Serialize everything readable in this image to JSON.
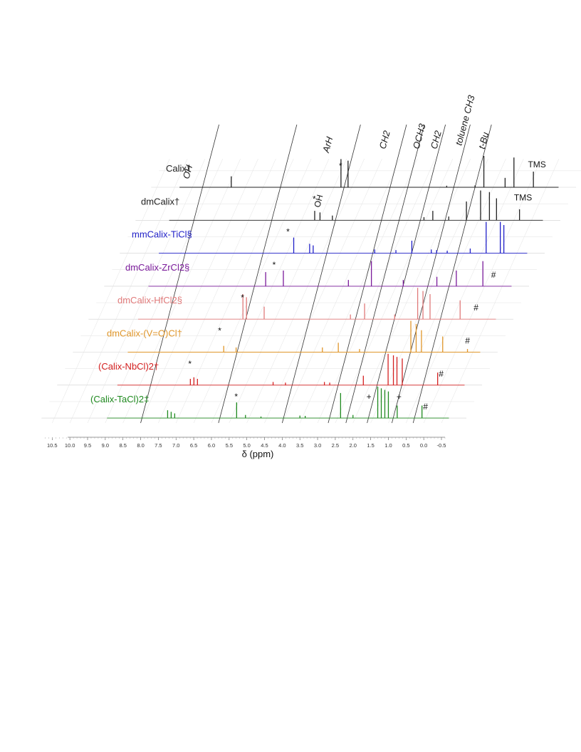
{
  "chart_data": {
    "type": "line",
    "title": "",
    "xlabel": "δ (ppm)",
    "ylabel": "",
    "xlim": [
      10.7,
      -0.6
    ],
    "x_ticks": [
      "10.5",
      "10.0",
      "9.5",
      "9.0",
      "8.5",
      "8.0",
      "7.5",
      "7.0",
      "6.5",
      "6.0",
      "5.5",
      "5.0",
      "4.5",
      "4.0",
      "3.5",
      "3.0",
      "2.5",
      "2.0",
      "1.5",
      "1.0",
      "0.5",
      "0.0",
      "-0.5"
    ],
    "region_labels": [
      {
        "text": "OH"
      },
      {
        "text": "ArH"
      },
      {
        "text": "CH2"
      },
      {
        "text": "OCH3"
      },
      {
        "text": "CH2"
      },
      {
        "text": "toluene CH3"
      },
      {
        "text": "t-Bu"
      }
    ],
    "series": [
      {
        "name": "Calix†",
        "color": "#222222",
        "peaks": [
          [
            8.55,
            0.35
          ],
          [
            5.45,
            0.9
          ],
          [
            5.25,
            0.85
          ],
          [
            2.45,
            0.05
          ],
          [
            1.65,
            0.06
          ],
          [
            1.4,
            1.0
          ],
          [
            0.8,
            0.3
          ],
          [
            0.55,
            0.95
          ],
          [
            0.0,
            0.5
          ]
        ],
        "marks": [
          {
            "symbol": "*",
            "x": 5.45
          },
          {
            "symbol": "TMS",
            "x": -0.1
          }
        ]
      },
      {
        "name": "dmCalix†",
        "color": "#222222",
        "peaks": [
          [
            5.75,
            0.3
          ],
          [
            5.6,
            0.25
          ],
          [
            5.25,
            0.15
          ],
          [
            2.65,
            0.1
          ],
          [
            2.4,
            0.3
          ],
          [
            1.95,
            0.12
          ],
          [
            1.45,
            0.6
          ],
          [
            1.05,
            0.95
          ],
          [
            0.8,
            0.9
          ],
          [
            0.6,
            0.7
          ],
          [
            -0.05,
            0.35
          ]
        ],
        "marks": [
          {
            "symbol": "*",
            "x": 5.75
          },
          {
            "symbol": "OH",
            "x": 5.55
          },
          {
            "symbol": "TMS",
            "x": -0.15
          }
        ]
      },
      {
        "name": "mmCalix-TiCl§",
        "color": "#1f1fc8",
        "peaks": [
          [
            5.9,
            0.5
          ],
          [
            5.45,
            0.3
          ],
          [
            5.35,
            0.25
          ],
          [
            3.6,
            0.12
          ],
          [
            3.0,
            0.1
          ],
          [
            2.55,
            0.4
          ],
          [
            2.0,
            0.12
          ],
          [
            1.85,
            0.1
          ],
          [
            1.55,
            0.08
          ],
          [
            0.9,
            0.15
          ],
          [
            0.45,
            1.0
          ],
          [
            0.05,
            1.0
          ],
          [
            -0.05,
            0.9
          ]
        ],
        "marks": [
          {
            "symbol": "*",
            "x": 6.05
          }
        ]
      },
      {
        "name": "dmCalix-ZrCl2§",
        "color": "#7a1a9a",
        "peaks": [
          [
            6.25,
            0.45
          ],
          [
            5.75,
            0.5
          ],
          [
            3.9,
            0.2
          ],
          [
            3.25,
            0.8
          ],
          [
            2.35,
            0.2
          ],
          [
            1.4,
            0.3
          ],
          [
            0.85,
            0.5
          ],
          [
            0.1,
            0.8
          ]
        ],
        "marks": [
          {
            "symbol": "*",
            "x": 6.0
          },
          {
            "symbol": "#",
            "x": -0.2
          }
        ]
      },
      {
        "name": "dmCalix-HfCl2§",
        "color": "#e07a7a",
        "peaks": [
          [
            6.45,
            0.8
          ],
          [
            6.35,
            0.7
          ],
          [
            5.85,
            0.4
          ],
          [
            3.4,
            0.15
          ],
          [
            3.0,
            0.5
          ],
          [
            2.15,
            0.15
          ],
          [
            1.5,
            1.0
          ],
          [
            1.35,
            0.9
          ],
          [
            1.15,
            0.8
          ],
          [
            0.3,
            0.6
          ]
        ],
        "marks": [
          {
            "symbol": "*",
            "x": 6.45
          },
          {
            "symbol": "#",
            "x": -0.15
          }
        ]
      },
      {
        "name": "dmCalix-(V=O)Cl†",
        "color": "#e0962a",
        "peaks": [
          [
            6.55,
            0.2
          ],
          [
            6.2,
            0.15
          ],
          [
            3.75,
            0.15
          ],
          [
            3.3,
            0.3
          ],
          [
            2.7,
            0.1
          ],
          [
            1.25,
            1.0
          ],
          [
            1.1,
            0.9
          ],
          [
            0.95,
            0.7
          ],
          [
            0.35,
            0.5
          ],
          [
            -0.35,
            0.1
          ]
        ],
        "marks": [
          {
            "symbol": "*",
            "x": 6.65
          },
          {
            "symbol": "#",
            "x": -0.35
          }
        ]
      },
      {
        "name": "(Calix-NbCl)2†",
        "color": "#d42020",
        "peaks": [
          [
            7.05,
            0.2
          ],
          [
            6.95,
            0.25
          ],
          [
            6.85,
            0.2
          ],
          [
            4.7,
            0.1
          ],
          [
            4.35,
            0.08
          ],
          [
            3.25,
            0.1
          ],
          [
            3.1,
            0.08
          ],
          [
            2.15,
            0.3
          ],
          [
            1.45,
            1.0
          ],
          [
            1.3,
            0.95
          ],
          [
            1.2,
            0.9
          ],
          [
            1.05,
            0.85
          ],
          [
            0.05,
            0.4
          ]
        ],
        "marks": [
          {
            "symbol": "*",
            "x": 7.05
          },
          {
            "symbol": "#",
            "x": -0.05
          }
        ]
      },
      {
        "name": "(Calix-TaCl)2‡",
        "color": "#1f8a1f",
        "peaks": [
          [
            7.25,
            0.25
          ],
          [
            7.15,
            0.2
          ],
          [
            7.05,
            0.15
          ],
          [
            5.3,
            0.5
          ],
          [
            5.05,
            0.1
          ],
          [
            4.6,
            0.05
          ],
          [
            3.5,
            0.08
          ],
          [
            3.35,
            0.07
          ],
          [
            2.35,
            0.8
          ],
          [
            2.0,
            0.1
          ],
          [
            1.3,
            1.0
          ],
          [
            1.2,
            0.95
          ],
          [
            1.1,
            0.9
          ],
          [
            1.0,
            0.85
          ],
          [
            0.75,
            0.4
          ],
          [
            0.05,
            0.4
          ]
        ],
        "marks": [
          {
            "symbol": "*",
            "x": 5.3
          },
          {
            "symbol": "+",
            "x": 1.55
          },
          {
            "symbol": "+",
            "x": 0.7
          },
          {
            "symbol": "#",
            "x": -0.05
          }
        ]
      }
    ]
  }
}
